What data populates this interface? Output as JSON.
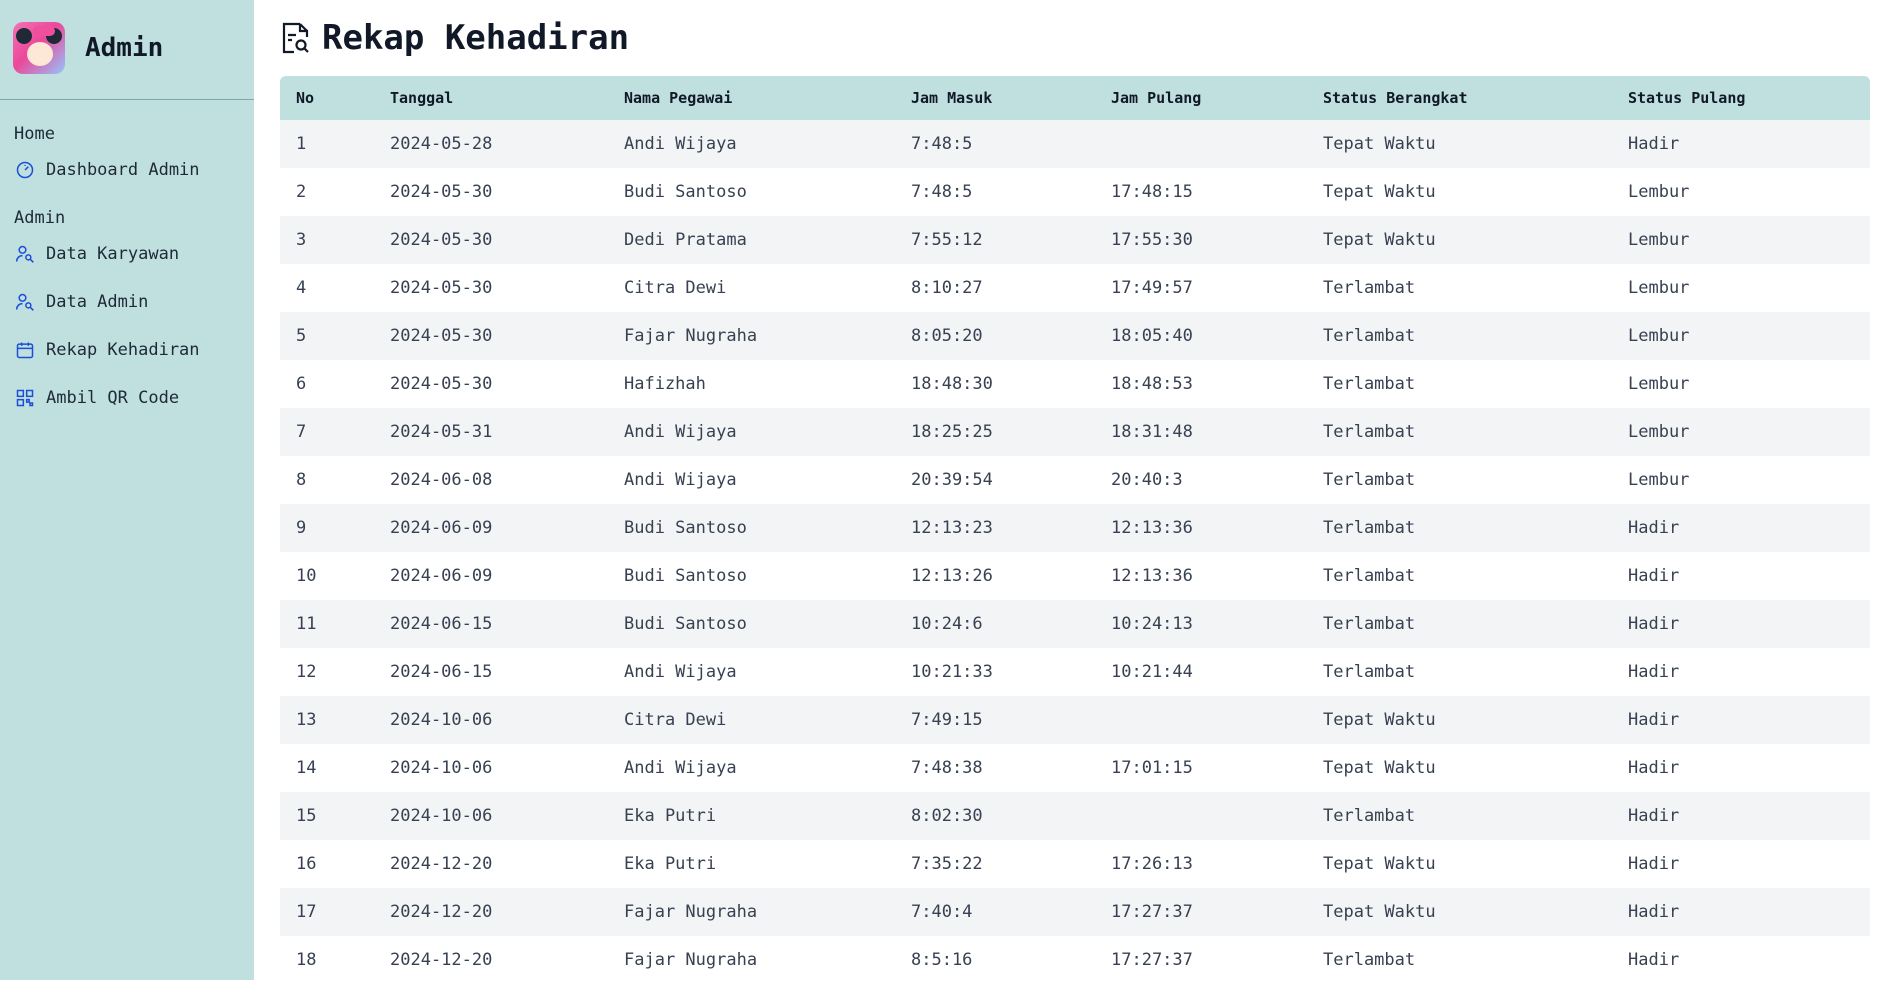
{
  "sidebar": {
    "title": "Admin",
    "sections": [
      {
        "heading": "Home",
        "items": [
          {
            "label": "Dashboard Admin",
            "icon": "gauge-icon"
          }
        ]
      },
      {
        "heading": "Admin",
        "items": [
          {
            "label": "Data Karyawan",
            "icon": "users-icon"
          },
          {
            "label": "Data Admin",
            "icon": "users-icon"
          },
          {
            "label": "Rekap Kehadiran",
            "icon": "calendar-icon"
          },
          {
            "label": "Ambil QR Code",
            "icon": "qr-code-icon"
          }
        ]
      }
    ]
  },
  "page": {
    "title": "Rekap Kehadiran",
    "icon": "document-search-icon"
  },
  "table": {
    "columns": [
      "No",
      "Tanggal",
      "Nama Pegawai",
      "Jam Masuk",
      "Jam Pulang",
      "Status Berangkat",
      "Status Pulang"
    ],
    "rows": [
      [
        "1",
        "2024-05-28",
        "Andi Wijaya",
        "7:48:5",
        "",
        "Tepat Waktu",
        "Hadir"
      ],
      [
        "2",
        "2024-05-30",
        "Budi Santoso",
        "7:48:5",
        "17:48:15",
        "Tepat Waktu",
        "Lembur"
      ],
      [
        "3",
        "2024-05-30",
        "Dedi Pratama",
        "7:55:12",
        "17:55:30",
        "Tepat Waktu",
        "Lembur"
      ],
      [
        "4",
        "2024-05-30",
        "Citra Dewi",
        "8:10:27",
        "17:49:57",
        "Terlambat",
        "Lembur"
      ],
      [
        "5",
        "2024-05-30",
        "Fajar Nugraha",
        "8:05:20",
        "18:05:40",
        "Terlambat",
        "Lembur"
      ],
      [
        "6",
        "2024-05-30",
        "Hafizhah",
        "18:48:30",
        "18:48:53",
        "Terlambat",
        "Lembur"
      ],
      [
        "7",
        "2024-05-31",
        "Andi Wijaya",
        "18:25:25",
        "18:31:48",
        "Terlambat",
        "Lembur"
      ],
      [
        "8",
        "2024-06-08",
        "Andi Wijaya",
        "20:39:54",
        "20:40:3",
        "Terlambat",
        "Lembur"
      ],
      [
        "9",
        "2024-06-09",
        "Budi Santoso",
        "12:13:23",
        "12:13:36",
        "Terlambat",
        "Hadir"
      ],
      [
        "10",
        "2024-06-09",
        "Budi Santoso",
        "12:13:26",
        "12:13:36",
        "Terlambat",
        "Hadir"
      ],
      [
        "11",
        "2024-06-15",
        "Budi Santoso",
        "10:24:6",
        "10:24:13",
        "Terlambat",
        "Hadir"
      ],
      [
        "12",
        "2024-06-15",
        "Andi Wijaya",
        "10:21:33",
        "10:21:44",
        "Terlambat",
        "Hadir"
      ],
      [
        "13",
        "2024-10-06",
        "Citra Dewi",
        "7:49:15",
        "",
        "Tepat Waktu",
        "Hadir"
      ],
      [
        "14",
        "2024-10-06",
        "Andi Wijaya",
        "7:48:38",
        "17:01:15",
        "Tepat Waktu",
        "Hadir"
      ],
      [
        "15",
        "2024-10-06",
        "Eka Putri",
        "8:02:30",
        "",
        "Terlambat",
        "Hadir"
      ],
      [
        "16",
        "2024-12-20",
        "Eka Putri",
        "7:35:22",
        "17:26:13",
        "Tepat Waktu",
        "Hadir"
      ],
      [
        "17",
        "2024-12-20",
        "Fajar Nugraha",
        "7:40:4",
        "17:27:37",
        "Tepat Waktu",
        "Hadir"
      ],
      [
        "18",
        "2024-12-20",
        "Fajar Nugraha",
        "8:5:16",
        "17:27:37",
        "Terlambat",
        "Hadir"
      ]
    ]
  },
  "colors": {
    "sidebar_bg": "#bfe0df",
    "header_bg": "#bfe0df",
    "stripe_bg": "#f3f4f6",
    "icon": "#1d4ed8"
  }
}
